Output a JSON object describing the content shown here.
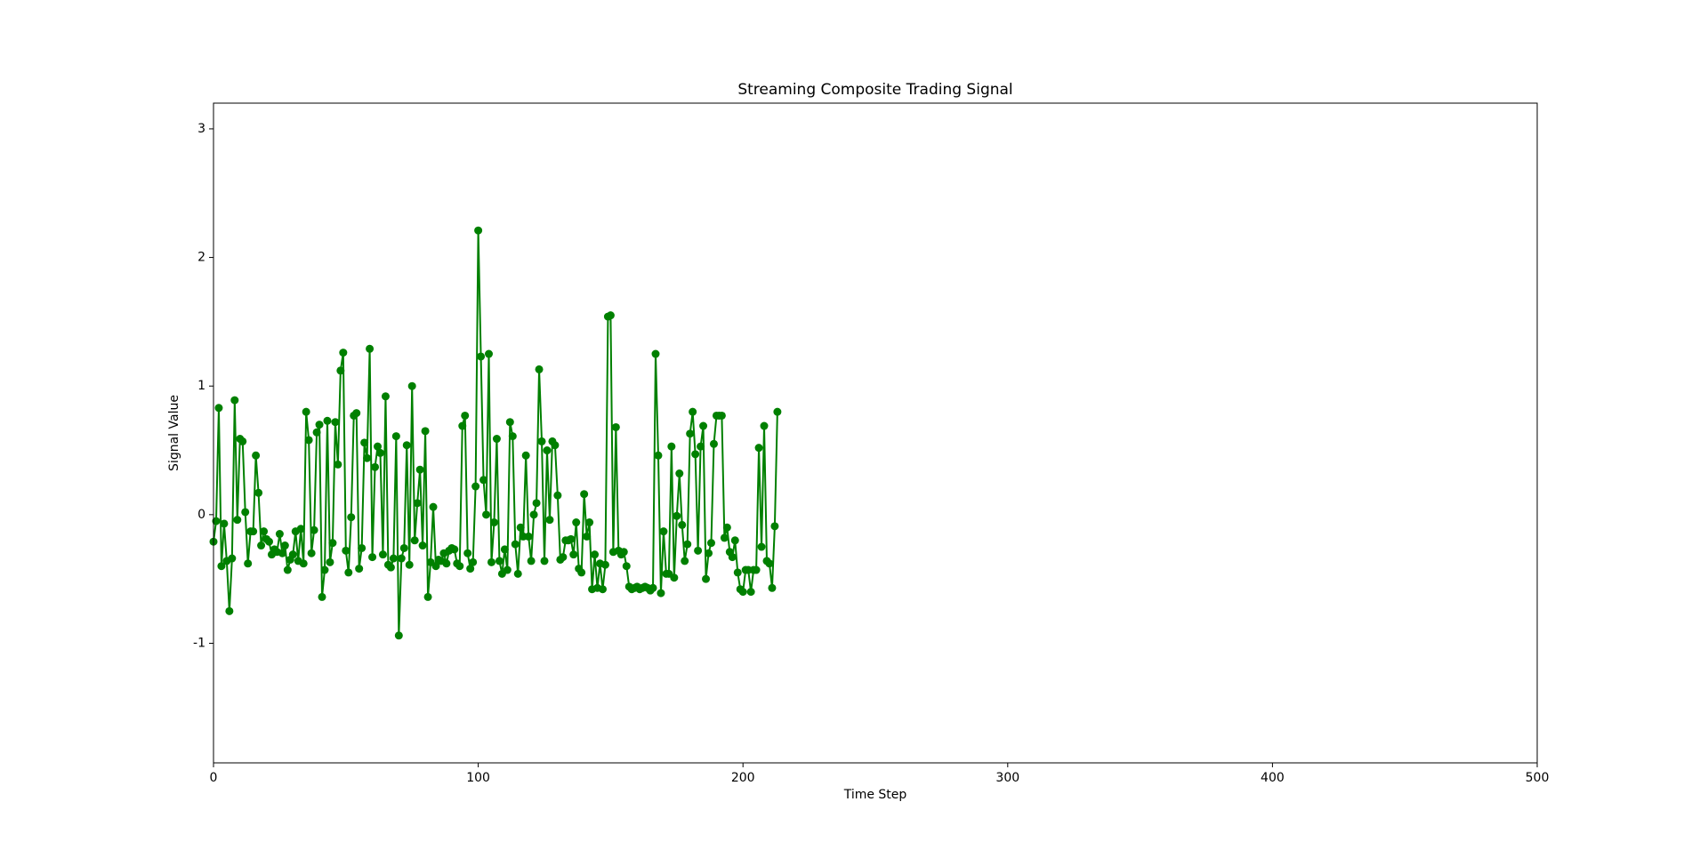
{
  "chart_data": {
    "type": "line",
    "title": "Streaming Composite Trading Signal",
    "x_label": "Time Step",
    "y_label": "Signal Value",
    "xlim": [
      0,
      500
    ],
    "ylim": [
      -1.93,
      3.2
    ],
    "xticks": [
      0,
      100,
      200,
      300,
      400,
      500
    ],
    "yticks": [
      -1,
      0,
      1,
      2,
      3
    ],
    "grid": false,
    "x": [
      0,
      1,
      2,
      3,
      4,
      5,
      6,
      7,
      8,
      9,
      10,
      11,
      12,
      13,
      14,
      15,
      16,
      17,
      18,
      19,
      20,
      21,
      22,
      23,
      24,
      25,
      26,
      27,
      28,
      29,
      30,
      31,
      32,
      33,
      34,
      35,
      36,
      37,
      38,
      39,
      40,
      41,
      42,
      43,
      44,
      45,
      46,
      47,
      48,
      49,
      50,
      51,
      52,
      53,
      54,
      55,
      56,
      57,
      58,
      59,
      60,
      61,
      62,
      63,
      64,
      65,
      66,
      67,
      68,
      69,
      70,
      71,
      72,
      73,
      74,
      75,
      76,
      77,
      78,
      79,
      80,
      81,
      82,
      83,
      84,
      85,
      86,
      87,
      88,
      89,
      90,
      91,
      92,
      93,
      94,
      95,
      96,
      97,
      98,
      99,
      100,
      101,
      102,
      103,
      104,
      105,
      106,
      107,
      108,
      109,
      110,
      111,
      112,
      113,
      114,
      115,
      116,
      117,
      118,
      119,
      120,
      121,
      122,
      123,
      124,
      125,
      126,
      127,
      128,
      129,
      130,
      131,
      132,
      133,
      134,
      135,
      136,
      137,
      138,
      139,
      140,
      141,
      142,
      143,
      144,
      145,
      146,
      147,
      148,
      149,
      150,
      151,
      152,
      153,
      154,
      155,
      156,
      157,
      158,
      159,
      160,
      161,
      162,
      163,
      164,
      165,
      166,
      167,
      168,
      169,
      170,
      171,
      172,
      173,
      174,
      175,
      176,
      177,
      178,
      179,
      180,
      181,
      182,
      183,
      184,
      185,
      186,
      187,
      188,
      189,
      190,
      191,
      192,
      193,
      194,
      195,
      196,
      197,
      198,
      199,
      200,
      201,
      202,
      203,
      204,
      205,
      206,
      207,
      208,
      209,
      210,
      211,
      212,
      213
    ],
    "series": [
      {
        "name": "Signal",
        "color": "#008000",
        "values": [
          -0.21,
          -0.05,
          0.83,
          -0.4,
          -0.07,
          -0.36,
          -0.75,
          -0.34,
          0.89,
          -0.04,
          0.59,
          0.57,
          0.02,
          -0.38,
          -0.13,
          -0.13,
          0.46,
          0.17,
          -0.24,
          -0.13,
          -0.19,
          -0.21,
          -0.31,
          -0.27,
          -0.29,
          -0.15,
          -0.3,
          -0.24,
          -0.43,
          -0.35,
          -0.31,
          -0.13,
          -0.36,
          -0.11,
          -0.38,
          0.8,
          0.58,
          -0.3,
          -0.12,
          0.64,
          0.7,
          -0.64,
          -0.43,
          0.73,
          -0.37,
          -0.22,
          0.72,
          0.39,
          1.12,
          1.26,
          -0.28,
          -0.45,
          -0.02,
          0.77,
          0.79,
          -0.42,
          -0.26,
          0.56,
          0.44,
          1.29,
          -0.33,
          0.37,
          0.53,
          0.48,
          -0.31,
          0.92,
          -0.39,
          -0.41,
          -0.34,
          0.61,
          -0.94,
          -0.34,
          -0.26,
          0.54,
          -0.39,
          1.0,
          -0.2,
          0.09,
          0.35,
          -0.24,
          0.65,
          -0.64,
          -0.37,
          0.06,
          -0.4,
          -0.35,
          -0.36,
          -0.3,
          -0.38,
          -0.28,
          -0.26,
          -0.27,
          -0.38,
          -0.4,
          0.69,
          0.77,
          -0.3,
          -0.42,
          -0.37,
          0.22,
          2.21,
          1.23,
          0.27,
          0.0,
          1.25,
          -0.37,
          -0.06,
          0.59,
          -0.36,
          -0.46,
          -0.27,
          -0.43,
          0.72,
          0.61,
          -0.23,
          -0.46,
          -0.1,
          -0.17,
          0.46,
          -0.17,
          -0.36,
          0.0,
          0.09,
          1.13,
          0.57,
          -0.36,
          0.5,
          -0.04,
          0.57,
          0.54,
          0.15,
          -0.35,
          -0.33,
          -0.2,
          -0.2,
          -0.19,
          -0.31,
          -0.06,
          -0.42,
          -0.45,
          0.16,
          -0.17,
          -0.06,
          -0.58,
          -0.31,
          -0.57,
          -0.38,
          -0.58,
          -0.39,
          1.54,
          1.55,
          -0.29,
          0.68,
          -0.28,
          -0.31,
          -0.29,
          -0.4,
          -0.56,
          -0.58,
          -0.57,
          -0.56,
          -0.58,
          -0.57,
          -0.56,
          -0.57,
          -0.59,
          -0.57,
          1.25,
          0.46,
          -0.61,
          -0.13,
          -0.46,
          -0.46,
          0.53,
          -0.49,
          -0.01,
          0.32,
          -0.08,
          -0.36,
          -0.23,
          0.63,
          0.8,
          0.47,
          -0.28,
          0.53,
          0.69,
          -0.5,
          -0.3,
          -0.22,
          0.55,
          0.77,
          0.77,
          0.77,
          -0.18,
          -0.1,
          -0.29,
          -0.33,
          -0.2,
          -0.45,
          -0.58,
          -0.6,
          -0.43,
          -0.43,
          -0.6,
          -0.43,
          -0.43,
          0.52,
          -0.25,
          0.69,
          -0.36,
          -0.38,
          -0.57,
          -0.09,
          0.8
        ]
      }
    ]
  }
}
